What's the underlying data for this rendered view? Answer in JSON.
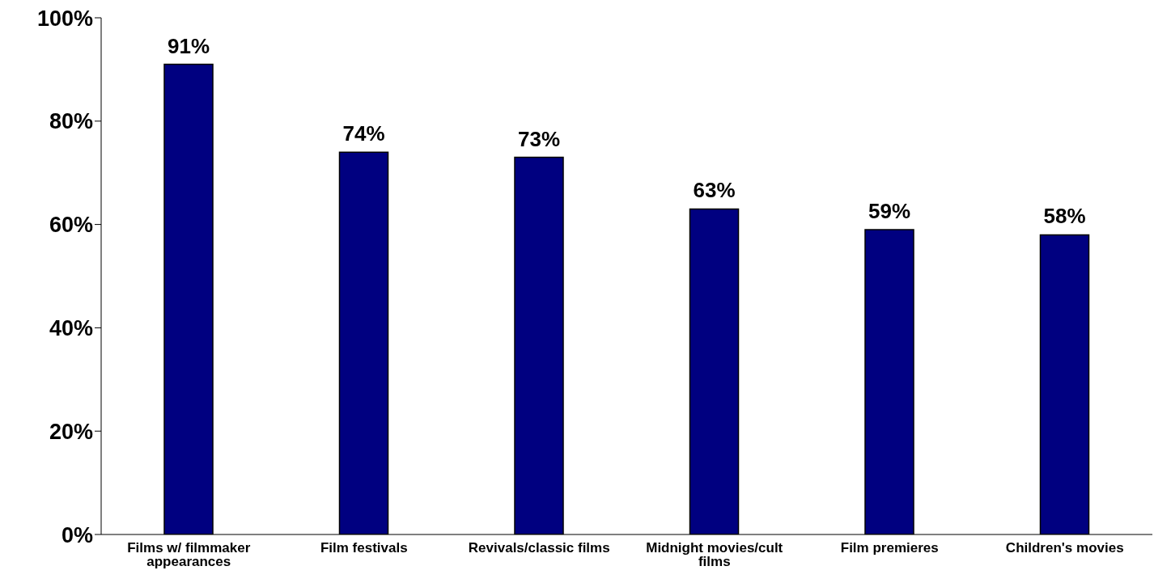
{
  "chart_data": {
    "type": "bar",
    "categories": [
      "Films w/ filmmaker appearances",
      "Film festivals",
      "Revivals/classic films",
      "Midnight movies/cult films",
      "Film premieres",
      "Children's movies"
    ],
    "values": [
      91,
      74,
      73,
      63,
      59,
      58
    ],
    "value_labels": [
      "91%",
      "74%",
      "73%",
      "63%",
      "59%",
      "58%"
    ],
    "color": "#000080",
    "ylim": [
      0,
      100
    ],
    "yticks": [
      {
        "value": 0,
        "label": "0%"
      },
      {
        "value": 20,
        "label": "20%"
      },
      {
        "value": 40,
        "label": "40%"
      },
      {
        "value": 60,
        "label": "60%"
      },
      {
        "value": 80,
        "label": "80%"
      },
      {
        "value": 100,
        "label": "100%"
      }
    ],
    "grid": false
  }
}
